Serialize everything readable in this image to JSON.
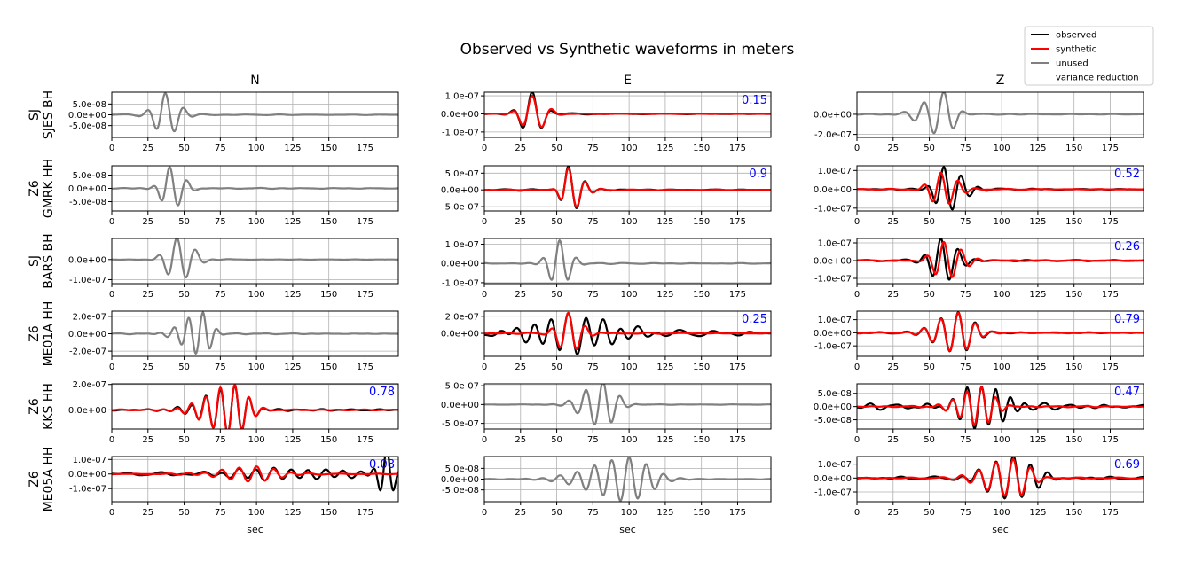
{
  "chart_data": {
    "type": "line",
    "title": "Observed vs Synthetic waveforms in meters",
    "columns": [
      "N",
      "E",
      "Z"
    ],
    "xlabel": "sec",
    "xlim": [
      0,
      198
    ],
    "xticks": [
      "0",
      "25",
      "50",
      "75",
      "100",
      "125",
      "150",
      "175"
    ],
    "legend": {
      "placement": "top-right",
      "entries": [
        {
          "name": "observed",
          "color": "#000000"
        },
        {
          "name": "synthetic",
          "color": "#ff0000"
        },
        {
          "name": "unused",
          "color": "#808080"
        },
        {
          "name": "variance reduction",
          "color": "#0000ff",
          "text_only": true
        }
      ]
    },
    "colors": {
      "observed": "#000000",
      "synthetic": "#ff0000",
      "unused": "#808080",
      "vr": "#0000ff"
    },
    "rows": [
      {
        "network": "SJ",
        "station": "SJES BH",
        "panels": [
          {
            "component": "N",
            "used": false,
            "ylim": [
              -1.05e-07,
              1.05e-07
            ],
            "yticks": [
              5e-08,
              0,
              -5e-08
            ],
            "ytick_labels": [
              "5.0e-08",
              "0.0e+00",
              "-5.0e-08"
            ],
            "vr": "",
            "waveform": {
              "t0": 37,
              "period": 13,
              "peak": 1e-07,
              "decay": 12,
              "pre": 10,
              "noise": 0.03
            }
          },
          {
            "component": "E",
            "used": true,
            "ylim": [
              -1.3e-07,
              1.2e-07
            ],
            "yticks": [
              1e-07,
              0,
              -1e-07
            ],
            "ytick_labels": [
              "1.0e-07",
              "0.0e+00",
              "-1.0e-07"
            ],
            "vr": "0.15",
            "observed": {
              "t0": 33,
              "period": 14,
              "peak": 1.2e-07,
              "decay": 10,
              "pre": 10,
              "noise": 0.04
            },
            "synthetic": {
              "t0": 33,
              "period": 14,
              "peak": 1e-07,
              "decay": 12,
              "pre": 10,
              "noise": 0.02
            }
          },
          {
            "component": "Z",
            "used": false,
            "ylim": [
              -2.3e-07,
              2.2e-07
            ],
            "yticks": [
              0,
              -2e-07
            ],
            "ytick_labels": [
              "0.0e+00",
              "-2.0e-07"
            ],
            "vr": "",
            "waveform": {
              "t0": 60,
              "period": 14,
              "peak": 2.2e-07,
              "decay": 10,
              "pre": 18,
              "noise": 0.03
            }
          }
        ]
      },
      {
        "network": "Z6",
        "station": "GMRK HH",
        "panels": [
          {
            "component": "N",
            "used": false,
            "ylim": [
              -8.5e-08,
              8.5e-08
            ],
            "yticks": [
              5e-08,
              0,
              -5e-08
            ],
            "ytick_labels": [
              "5.0e-08",
              "0.0e+00",
              "-5.0e-08"
            ],
            "vr": "",
            "waveform": {
              "t0": 40,
              "period": 12,
              "peak": 8e-08,
              "decay": 12,
              "pre": 8,
              "noise": 0.04
            }
          },
          {
            "component": "E",
            "used": true,
            "ylim": [
              -6.3e-07,
              7.2e-07
            ],
            "yticks": [
              5e-07,
              0,
              -5e-07
            ],
            "ytick_labels": [
              "5.0e-07",
              "0.0e+00",
              "-5.0e-07"
            ],
            "vr": "0.9",
            "observed": {
              "t0": 58,
              "period": 12,
              "peak": 7e-07,
              "decay": 12,
              "pre": 6,
              "noise": 0.04
            },
            "synthetic": {
              "t0": 58,
              "period": 12,
              "peak": 6.6e-07,
              "decay": 12,
              "pre": 6,
              "noise": 0.03
            }
          },
          {
            "component": "Z",
            "used": true,
            "ylim": [
              -1.15e-07,
              1.25e-07
            ],
            "yticks": [
              1e-07,
              0,
              -1e-07
            ],
            "ytick_labels": [
              "1.0e-07",
              "0.0e+00",
              "-1.0e-07"
            ],
            "vr": "0.52",
            "observed": {
              "t0": 60,
              "period": 12,
              "peak": 1.2e-07,
              "decay": 16,
              "pre": 8,
              "noise": 0.05
            },
            "synthetic": {
              "t0": 58,
              "period": 12,
              "peak": 9e-08,
              "decay": 14,
              "pre": 10,
              "noise": 0.04
            }
          }
        ]
      },
      {
        "network": "SJ",
        "station": "BARS BH",
        "panels": [
          {
            "component": "N",
            "used": false,
            "ylim": [
              -1.2e-07,
              1.05e-07
            ],
            "yticks": [
              0,
              -1e-07
            ],
            "ytick_labels": [
              "0.0e+00",
              "-1.0e-07"
            ],
            "vr": "",
            "waveform": {
              "t0": 45,
              "period": 13,
              "peak": 1.1e-07,
              "decay": 14,
              "pre": 10,
              "noise": 0.03
            }
          },
          {
            "component": "E",
            "used": false,
            "ylim": [
              -1.05e-07,
              1.3e-07
            ],
            "yticks": [
              1e-07,
              0,
              -1e-07
            ],
            "ytick_labels": [
              "1.0e-07",
              "0.0e+00",
              "-1.0e-07"
            ],
            "vr": "",
            "waveform": {
              "t0": 52,
              "period": 12,
              "peak": 1.2e-07,
              "decay": 10,
              "pre": 10,
              "noise": 0.03
            }
          },
          {
            "component": "Z",
            "used": true,
            "ylim": [
              -1.3e-07,
              1.25e-07
            ],
            "yticks": [
              1e-07,
              0,
              -1e-07
            ],
            "ytick_labels": [
              "1.0e-07",
              "0.0e+00",
              "-1.0e-07"
            ],
            "vr": "0.26",
            "observed": {
              "t0": 58,
              "period": 12,
              "peak": 1.25e-07,
              "decay": 14,
              "pre": 10,
              "noise": 0.05
            },
            "synthetic": {
              "t0": 60,
              "period": 12,
              "peak": 1.05e-07,
              "decay": 16,
              "pre": 10,
              "noise": 0.03
            }
          }
        ]
      },
      {
        "network": "Z6",
        "station": "ME01A HH",
        "panels": [
          {
            "component": "N",
            "used": false,
            "ylim": [
              -2.6e-07,
              2.6e-07
            ],
            "yticks": [
              2e-07,
              0,
              -2e-07
            ],
            "ytick_labels": [
              "2.0e-07",
              "0.0e+00",
              "-2.0e-07"
            ],
            "vr": "",
            "waveform": {
              "t0": 63,
              "period": 10,
              "peak": 2.5e-07,
              "decay": 8,
              "pre": 18,
              "noise": 0.03
            }
          },
          {
            "component": "E",
            "used": true,
            "ylim": [
              -2.7e-07,
              2.6e-07
            ],
            "yticks": [
              2e-07,
              0
            ],
            "ytick_labels": [
              "2.0e-07",
              "0.0e+00"
            ],
            "vr": "0.25",
            "observed": {
              "t0": 58,
              "period": 12,
              "peak": 2.2e-07,
              "decay": 40,
              "pre": 30,
              "noise": 0.35
            },
            "synthetic": {
              "t0": 58,
              "period": 12,
              "peak": 2.4e-07,
              "decay": 12,
              "pre": 10,
              "noise": 0.05
            }
          },
          {
            "component": "Z",
            "used": true,
            "ylim": [
              -1.8e-07,
              1.65e-07
            ],
            "yticks": [
              1e-07,
              0,
              -1e-07
            ],
            "ytick_labels": [
              "1.0e-07",
              "0.0e+00",
              "-1.0e-07"
            ],
            "vr": "0.79",
            "observed": {
              "t0": 70,
              "period": 12,
              "peak": 1.6e-07,
              "decay": 14,
              "pre": 20,
              "noise": 0.05
            },
            "synthetic": {
              "t0": 70,
              "period": 12,
              "peak": 1.5e-07,
              "decay": 14,
              "pre": 20,
              "noise": 0.04
            }
          }
        ]
      },
      {
        "network": "Z6",
        "station": "KKS HH",
        "panels": [
          {
            "component": "N",
            "used": true,
            "ylim": [
              -1.5e-07,
              2.05e-07
            ],
            "yticks": [
              2e-07,
              0
            ],
            "ytick_labels": [
              "2.0e-07",
              "0.0e+00"
            ],
            "vr": "0.78",
            "observed": {
              "t0": 85,
              "period": 10,
              "peak": 1.9e-07,
              "decay": 12,
              "pre": 25,
              "noise": 0.05
            },
            "synthetic": {
              "t0": 85,
              "period": 10,
              "peak": 2e-07,
              "decay": 12,
              "pre": 25,
              "noise": 0.04
            }
          },
          {
            "component": "E",
            "used": false,
            "ylim": [
              -6.5e-07,
              5.5e-07
            ],
            "yticks": [
              5e-07,
              0,
              -5e-07
            ],
            "ytick_labels": [
              "5.0e-07",
              "0.0e+00",
              "-5.0e-07"
            ],
            "vr": "",
            "waveform": {
              "t0": 82,
              "period": 12,
              "peak": 6e-07,
              "decay": 12,
              "pre": 18,
              "noise": 0.02
            }
          },
          {
            "component": "Z",
            "used": true,
            "ylim": [
              -8.5e-08,
              8.6e-08
            ],
            "yticks": [
              5e-08,
              0,
              -5e-08
            ],
            "ytick_labels": [
              "5.0e-08",
              "0.0e+00",
              "-5.0e-08"
            ],
            "vr": "0.47",
            "observed": {
              "t0": 86,
              "period": 10,
              "peak": 8.5e-08,
              "decay": 22,
              "pre": 20,
              "noise": 0.18
            },
            "synthetic": {
              "t0": 86,
              "period": 10,
              "peak": 7.5e-08,
              "decay": 12,
              "pre": 20,
              "noise": 0.05
            }
          }
        ]
      },
      {
        "network": "Z6",
        "station": "ME05A HH",
        "panels": [
          {
            "component": "N",
            "used": true,
            "ylim": [
              -1.9e-07,
              1.2e-07
            ],
            "yticks": [
              1e-07,
              0,
              -1e-07
            ],
            "ytick_labels": [
              "1.0e-07",
              "0.0e+00",
              "-1.0e-07"
            ],
            "vr": "0.08",
            "observed": {
              "t0": 100,
              "period": 12,
              "peak": 4e-08,
              "decay": 90,
              "pre": 30,
              "noise": 0.5,
              "tail": {
                "t": 190,
                "amp": 1.9e-07,
                "period": 10
              }
            },
            "synthetic": {
              "t0": 100,
              "period": 12,
              "peak": 5e-08,
              "decay": 20,
              "pre": 30,
              "noise": 0.1
            }
          },
          {
            "component": "E",
            "used": false,
            "ylim": [
              -1.05e-07,
              1.05e-07
            ],
            "yticks": [
              5e-08,
              0,
              -5e-08
            ],
            "ytick_labels": [
              "5.0e-08",
              "0.0e+00",
              "-5.0e-08"
            ],
            "vr": "",
            "waveform": {
              "t0": 100,
              "period": 12,
              "peak": 1e-07,
              "decay": 20,
              "pre": 35,
              "noise": 0.04
            }
          },
          {
            "component": "Z",
            "used": true,
            "ylim": [
              -1.7e-07,
              1.55e-07
            ],
            "yticks": [
              1e-07,
              0,
              -1e-07
            ],
            "ytick_labels": [
              "1.0e-07",
              "0.0e+00",
              "-1.0e-07"
            ],
            "vr": "0.69",
            "observed": {
              "t0": 108,
              "period": 12,
              "peak": 1.6e-07,
              "decay": 20,
              "pre": 25,
              "noise": 0.1
            },
            "synthetic": {
              "t0": 108,
              "period": 12,
              "peak": 1.4e-07,
              "decay": 14,
              "pre": 25,
              "noise": 0.06
            }
          }
        ]
      }
    ]
  }
}
